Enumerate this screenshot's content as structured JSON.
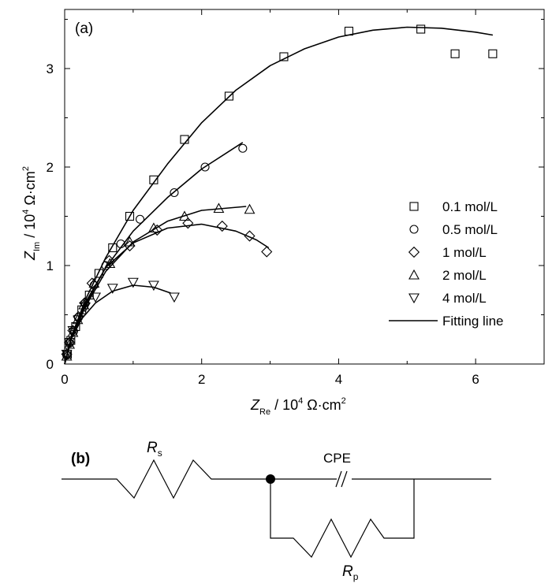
{
  "chart_data": {
    "type": "scatter",
    "panel_label": "(a)",
    "xlabel": {
      "symbol": "Z",
      "sub": "Re",
      "rest": " / 10",
      "sup": "4",
      "unit": " Ω·cm",
      "unit_sup": "2"
    },
    "ylabel": {
      "symbol": "Z",
      "sub": "Im",
      "rest": " / 10",
      "sup": "4",
      "unit": " Ω·cm",
      "unit_sup": "2"
    },
    "xlim": [
      0,
      7
    ],
    "ylim": [
      0,
      3.6
    ],
    "xticks": [
      "0",
      "2",
      "4",
      "6"
    ],
    "yticks": [
      "0",
      "1",
      "2",
      "3"
    ],
    "series": [
      {
        "name": "0.1 mol/L",
        "marker": "square",
        "points": [
          [
            0.04,
            0.1
          ],
          [
            0.09,
            0.24
          ],
          [
            0.16,
            0.38
          ],
          [
            0.25,
            0.55
          ],
          [
            0.36,
            0.7
          ],
          [
            0.5,
            0.92
          ],
          [
            0.7,
            1.18
          ],
          [
            0.95,
            1.5
          ],
          [
            1.3,
            1.87
          ],
          [
            1.75,
            2.28
          ],
          [
            2.4,
            2.72
          ],
          [
            3.2,
            3.12
          ],
          [
            4.15,
            3.38
          ],
          [
            5.2,
            3.4
          ],
          [
            5.7,
            3.15
          ],
          [
            6.25,
            3.15
          ]
        ],
        "fit": [
          [
            0,
            0
          ],
          [
            0.1,
            0.28
          ],
          [
            0.3,
            0.65
          ],
          [
            0.6,
            1.08
          ],
          [
            1.0,
            1.56
          ],
          [
            1.5,
            2.03
          ],
          [
            2.0,
            2.45
          ],
          [
            2.5,
            2.78
          ],
          [
            3.0,
            3.03
          ],
          [
            3.5,
            3.2
          ],
          [
            4.0,
            3.32
          ],
          [
            4.5,
            3.39
          ],
          [
            5.0,
            3.42
          ],
          [
            5.5,
            3.41
          ],
          [
            6.0,
            3.37
          ],
          [
            6.25,
            3.34
          ]
        ]
      },
      {
        "name": "0.5 mol/L",
        "marker": "circle",
        "points": [
          [
            0.03,
            0.09
          ],
          [
            0.07,
            0.21
          ],
          [
            0.13,
            0.33
          ],
          [
            0.2,
            0.47
          ],
          [
            0.3,
            0.62
          ],
          [
            0.43,
            0.8
          ],
          [
            0.6,
            1.0
          ],
          [
            0.82,
            1.22
          ],
          [
            1.1,
            1.47
          ],
          [
            1.6,
            1.74
          ],
          [
            2.05,
            2.0
          ],
          [
            2.6,
            2.19
          ]
        ],
        "fit": [
          [
            0,
            0
          ],
          [
            0.1,
            0.27
          ],
          [
            0.3,
            0.6
          ],
          [
            0.6,
            0.98
          ],
          [
            1.0,
            1.35
          ],
          [
            1.5,
            1.69
          ],
          [
            2.0,
            1.98
          ],
          [
            2.6,
            2.25
          ]
        ]
      },
      {
        "name": "1 mol/L",
        "marker": "diamond",
        "points": [
          [
            0.03,
            0.1
          ],
          [
            0.07,
            0.22
          ],
          [
            0.12,
            0.34
          ],
          [
            0.2,
            0.48
          ],
          [
            0.29,
            0.62
          ],
          [
            0.4,
            0.82
          ],
          [
            0.65,
            1.05
          ],
          [
            0.95,
            1.2
          ],
          [
            1.35,
            1.36
          ],
          [
            1.8,
            1.43
          ],
          [
            2.3,
            1.4
          ],
          [
            2.7,
            1.3
          ],
          [
            2.95,
            1.14
          ]
        ],
        "fit": [
          [
            0,
            0
          ],
          [
            0.1,
            0.29
          ],
          [
            0.3,
            0.62
          ],
          [
            0.6,
            0.98
          ],
          [
            1.0,
            1.23
          ],
          [
            1.5,
            1.38
          ],
          [
            2.0,
            1.42
          ],
          [
            2.5,
            1.35
          ],
          [
            2.8,
            1.26
          ],
          [
            2.98,
            1.18
          ]
        ]
      },
      {
        "name": "2 mol/L",
        "marker": "triangle-up",
        "points": [
          [
            0.03,
            0.08
          ],
          [
            0.07,
            0.2
          ],
          [
            0.12,
            0.32
          ],
          [
            0.19,
            0.45
          ],
          [
            0.28,
            0.6
          ],
          [
            0.43,
            0.82
          ],
          [
            0.66,
            1.02
          ],
          [
            0.95,
            1.24
          ],
          [
            1.3,
            1.38
          ],
          [
            1.75,
            1.5
          ],
          [
            2.25,
            1.58
          ],
          [
            2.7,
            1.57
          ]
        ],
        "fit": [
          [
            0,
            0
          ],
          [
            0.1,
            0.26
          ],
          [
            0.3,
            0.58
          ],
          [
            0.6,
            0.94
          ],
          [
            1.0,
            1.24
          ],
          [
            1.5,
            1.45
          ],
          [
            2.0,
            1.56
          ],
          [
            2.65,
            1.6
          ]
        ]
      },
      {
        "name": "4 mol/L",
        "marker": "triangle-down",
        "points": [
          [
            0.03,
            0.1
          ],
          [
            0.07,
            0.22
          ],
          [
            0.12,
            0.34
          ],
          [
            0.2,
            0.45
          ],
          [
            0.3,
            0.58
          ],
          [
            0.45,
            0.68
          ],
          [
            0.7,
            0.77
          ],
          [
            1.0,
            0.83
          ],
          [
            1.3,
            0.8
          ],
          [
            1.6,
            0.68
          ]
        ],
        "fit": [
          [
            0,
            0
          ],
          [
            0.1,
            0.26
          ],
          [
            0.25,
            0.46
          ],
          [
            0.45,
            0.62
          ],
          [
            0.7,
            0.74
          ],
          [
            1.0,
            0.8
          ],
          [
            1.3,
            0.78
          ],
          [
            1.55,
            0.72
          ]
        ]
      }
    ],
    "legend": {
      "position": "center-right",
      "fit_label": "Fitting line"
    }
  },
  "circuit": {
    "panel_label": "(b)",
    "rs_symbol": "R",
    "rs_sub": "s",
    "cpe_label": "CPE",
    "rp_symbol": "R",
    "rp_sub": "p"
  }
}
